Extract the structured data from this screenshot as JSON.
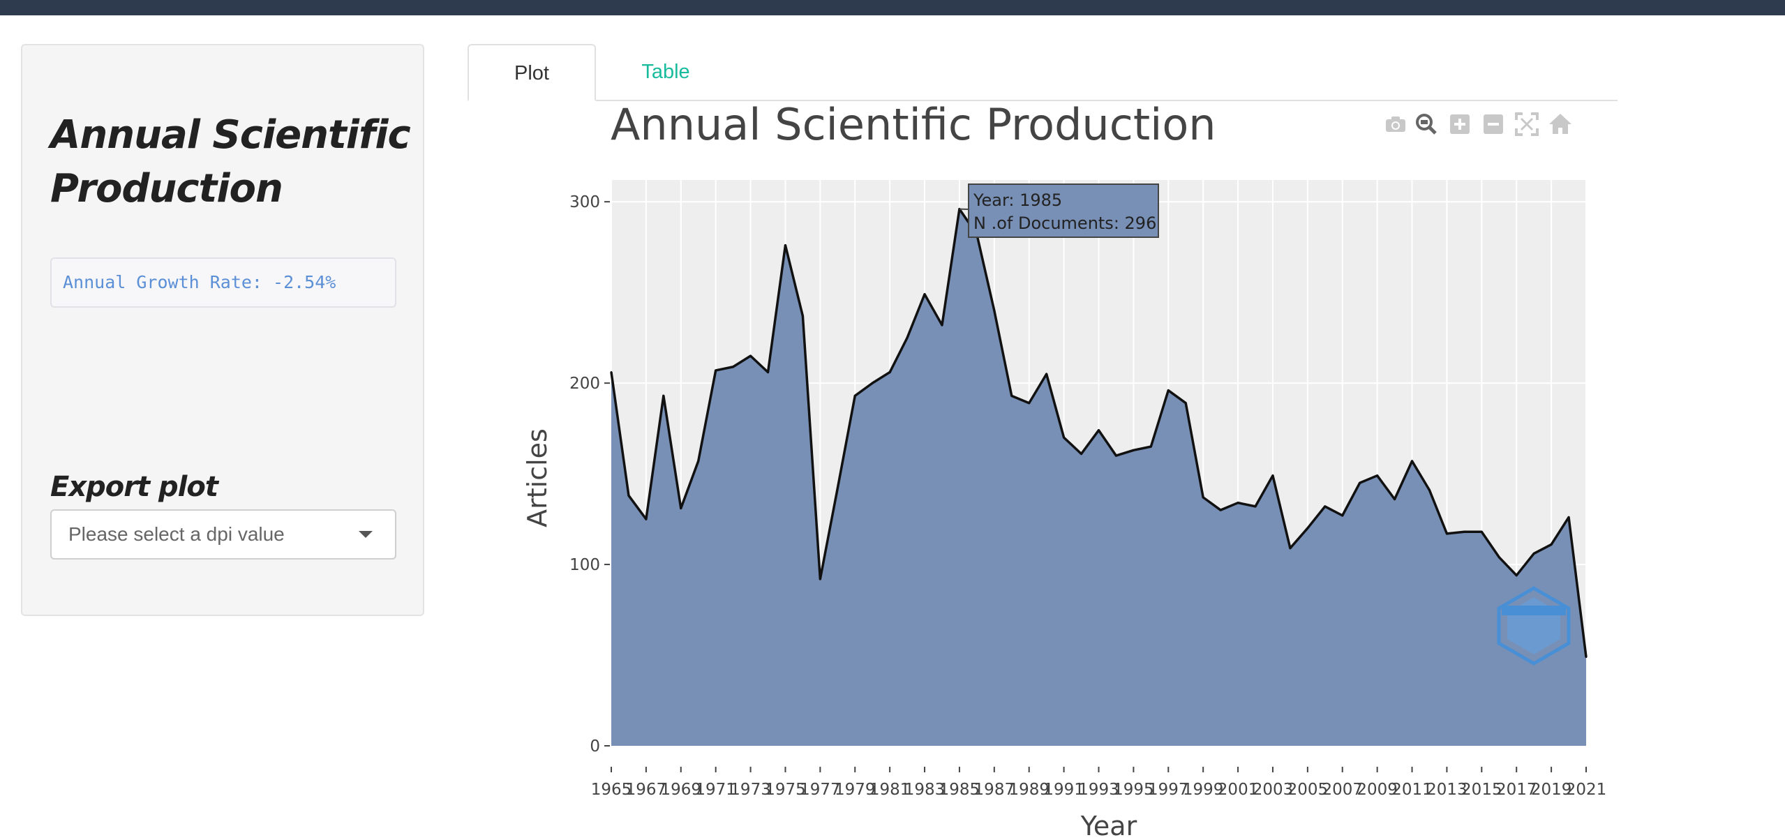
{
  "sidebar": {
    "title": "Annual Scientific Production",
    "growth_rate": "Annual Growth Rate: -2.54%",
    "export_title": "Export plot",
    "dpi_placeholder": "Please select a dpi value"
  },
  "tabs": [
    {
      "label": "Plot",
      "active": true
    },
    {
      "label": "Table",
      "active": false
    }
  ],
  "modebar_icons": [
    "camera-icon",
    "zoom-icon",
    "zoom-in-icon",
    "zoom-out-icon",
    "autoscale-icon",
    "home-icon"
  ],
  "tooltip": {
    "line1": "Year:  1985",
    "line2": "N .of Documents:  296"
  },
  "colors": {
    "fill": "#7890b6",
    "line": "#111111",
    "plot_bg": "#eeeeee",
    "accent_tab": "#18bc9c",
    "growth_text": "#5b8fd6"
  },
  "chart_data": {
    "type": "area",
    "title": "Annual Scientific Production",
    "xlabel": "Year",
    "ylabel": "Articles",
    "xlim": [
      1965,
      2021
    ],
    "ylim": [
      0,
      312
    ],
    "yticks": [
      0,
      100,
      200,
      300
    ],
    "xticks": [
      1965,
      1967,
      1969,
      1971,
      1973,
      1975,
      1977,
      1979,
      1981,
      1983,
      1985,
      1987,
      1989,
      1991,
      1993,
      1995,
      1997,
      1999,
      2001,
      2003,
      2005,
      2007,
      2009,
      2011,
      2013,
      2015,
      2017,
      2019,
      2021
    ],
    "grid": true,
    "x": [
      1965,
      1966,
      1967,
      1968,
      1969,
      1970,
      1971,
      1972,
      1973,
      1974,
      1975,
      1976,
      1977,
      1978,
      1979,
      1980,
      1981,
      1982,
      1983,
      1984,
      1985,
      1986,
      1987,
      1988,
      1989,
      1990,
      1991,
      1992,
      1993,
      1994,
      1995,
      1996,
      1997,
      1998,
      1999,
      2000,
      2001,
      2002,
      2003,
      2004,
      2005,
      2006,
      2007,
      2008,
      2009,
      2010,
      2011,
      2012,
      2013,
      2014,
      2015,
      2016,
      2017,
      2018,
      2019,
      2020,
      2021
    ],
    "values": [
      206,
      138,
      125,
      193,
      131,
      157,
      207,
      209,
      215,
      206,
      276,
      237,
      92,
      142,
      193,
      200,
      206,
      225,
      249,
      232,
      296,
      282,
      240,
      193,
      189,
      205,
      170,
      161,
      174,
      160,
      163,
      165,
      196,
      189,
      137,
      130,
      134,
      132,
      149,
      109,
      120,
      132,
      127,
      145,
      149,
      136,
      157,
      141,
      117,
      118,
      118,
      104,
      94,
      106,
      111,
      126,
      49
    ]
  }
}
